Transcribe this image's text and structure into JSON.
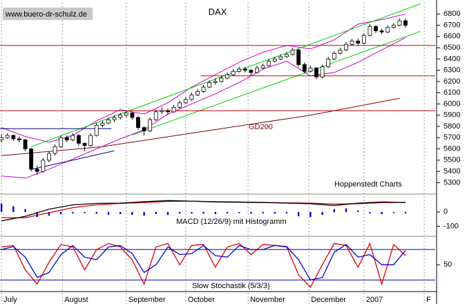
{
  "chart_data": [
    {
      "type": "candlestick",
      "title": "DAX",
      "source": "www.buero-dr-schulz.de",
      "credit": "Hoppenstedt Charts",
      "xlim": [
        -0.5,
        146
      ],
      "ylim": [
        5210,
        6900
      ],
      "yticks": [
        5300,
        5400,
        5500,
        5600,
        5700,
        5800,
        5900,
        6000,
        6100,
        6200,
        6300,
        6400,
        6500,
        6600,
        6700,
        6800
      ],
      "xticks": [
        {
          "value": 0,
          "label": "July"
        },
        {
          "value": 20.5,
          "label": "August"
        },
        {
          "value": 42,
          "label": "September"
        },
        {
          "value": 62,
          "label": "October"
        },
        {
          "value": 83,
          "label": "November"
        },
        {
          "value": 103.5,
          "label": "December"
        },
        {
          "value": 122,
          "label": "2007"
        },
        {
          "value": 142.3,
          "label": "F"
        }
      ],
      "up_color": "#ffffff",
      "down_color": "#000000",
      "x": [
        0,
        2,
        4,
        6,
        8,
        10,
        12,
        14,
        16,
        18,
        20,
        22,
        24,
        26,
        28,
        30,
        32,
        34,
        36,
        38,
        40,
        42,
        44,
        46,
        48,
        50,
        52,
        54,
        56,
        58,
        60,
        62,
        64,
        66,
        68,
        70,
        72,
        74,
        76,
        78,
        80,
        82,
        84,
        86,
        88,
        90,
        92,
        94,
        96,
        98,
        100,
        102,
        104,
        106,
        108,
        110,
        112,
        114,
        116,
        118,
        120,
        122,
        124,
        126,
        128,
        130,
        132,
        134,
        136
      ],
      "candles": [
        [
          5680,
          5730,
          5660,
          5700
        ],
        [
          5700,
          5740,
          5690,
          5720
        ],
        [
          5720,
          5730,
          5670,
          5690
        ],
        [
          5690,
          5710,
          5660,
          5680
        ],
        [
          5680,
          5690,
          5580,
          5600
        ],
        [
          5600,
          5610,
          5400,
          5420
        ],
        [
          5420,
          5450,
          5370,
          5400
        ],
        [
          5400,
          5520,
          5390,
          5500
        ],
        [
          5500,
          5580,
          5480,
          5560
        ],
        [
          5560,
          5640,
          5540,
          5620
        ],
        [
          5620,
          5720,
          5610,
          5700
        ],
        [
          5700,
          5720,
          5660,
          5680
        ],
        [
          5680,
          5740,
          5670,
          5720
        ],
        [
          5720,
          5730,
          5630,
          5650
        ],
        [
          5650,
          5660,
          5580,
          5630
        ],
        [
          5630,
          5740,
          5620,
          5720
        ],
        [
          5720,
          5830,
          5710,
          5810
        ],
        [
          5810,
          5850,
          5790,
          5830
        ],
        [
          5830,
          5880,
          5820,
          5860
        ],
        [
          5860,
          5900,
          5840,
          5880
        ],
        [
          5880,
          5920,
          5860,
          5900
        ],
        [
          5900,
          5940,
          5880,
          5920
        ],
        [
          5920,
          5930,
          5860,
          5880
        ],
        [
          5880,
          5890,
          5770,
          5790
        ],
        [
          5790,
          5800,
          5720,
          5760
        ],
        [
          5760,
          5880,
          5750,
          5860
        ],
        [
          5860,
          5950,
          5850,
          5930
        ],
        [
          5930,
          5970,
          5910,
          5940
        ],
        [
          5940,
          5960,
          5900,
          5930
        ],
        [
          5930,
          5990,
          5920,
          5970
        ],
        [
          5970,
          6030,
          5960,
          6010
        ],
        [
          6010,
          6060,
          6000,
          6040
        ],
        [
          6040,
          6100,
          6030,
          6080
        ],
        [
          6080,
          6130,
          6070,
          6110
        ],
        [
          6110,
          6170,
          6100,
          6150
        ],
        [
          6150,
          6210,
          6140,
          6190
        ],
        [
          6190,
          6230,
          6170,
          6200
        ],
        [
          6200,
          6250,
          6190,
          6230
        ],
        [
          6230,
          6280,
          6220,
          6260
        ],
        [
          6260,
          6310,
          6250,
          6290
        ],
        [
          6290,
          6330,
          6280,
          6310
        ],
        [
          6310,
          6330,
          6280,
          6300
        ],
        [
          6300,
          6310,
          6250,
          6280
        ],
        [
          6280,
          6340,
          6270,
          6320
        ],
        [
          6320,
          6360,
          6310,
          6340
        ],
        [
          6340,
          6400,
          6330,
          6380
        ],
        [
          6380,
          6420,
          6370,
          6400
        ],
        [
          6400,
          6440,
          6390,
          6420
        ],
        [
          6420,
          6460,
          6410,
          6440
        ],
        [
          6440,
          6500,
          6430,
          6480
        ],
        [
          6480,
          6490,
          6330,
          6350
        ],
        [
          6350,
          6370,
          6270,
          6290
        ],
        [
          6290,
          6340,
          6280,
          6320
        ],
        [
          6320,
          6330,
          6220,
          6240
        ],
        [
          6240,
          6350,
          6230,
          6330
        ],
        [
          6330,
          6420,
          6320,
          6400
        ],
        [
          6400,
          6470,
          6390,
          6450
        ],
        [
          6450,
          6500,
          6440,
          6480
        ],
        [
          6480,
          6550,
          6470,
          6530
        ],
        [
          6530,
          6580,
          6520,
          6560
        ],
        [
          6560,
          6580,
          6520,
          6540
        ],
        [
          6540,
          6630,
          6530,
          6610
        ],
        [
          6610,
          6710,
          6600,
          6690
        ],
        [
          6690,
          6700,
          6630,
          6650
        ],
        [
          6650,
          6670,
          6620,
          6640
        ],
        [
          6640,
          6700,
          6630,
          6680
        ],
        [
          6680,
          6720,
          6670,
          6700
        ],
        [
          6700,
          6760,
          6690,
          6740
        ],
        [
          6740,
          6760,
          6680,
          6700
        ]
      ],
      "lines": [
        {
          "name": "GD200",
          "color": "#800000",
          "x": [
            0,
            34,
            69,
            104,
            134
          ],
          "values": [
            5540,
            5620,
            5760,
            5900,
            6050
          ]
        },
        {
          "color": "#cc00cc",
          "x": [
            0,
            8,
            16,
            24,
            32,
            40,
            48,
            56,
            64,
            72,
            80,
            88,
            96,
            104,
            112,
            120,
            128,
            136
          ],
          "values": [
            5790,
            5710,
            5660,
            5720,
            5850,
            5950,
            5910,
            6010,
            6150,
            6260,
            6370,
            6460,
            6520,
            6490,
            6570,
            6710,
            6750,
            6800
          ]
        },
        {
          "color": "#cc00cc",
          "x": [
            0,
            8,
            16,
            24,
            32,
            40,
            48,
            56,
            64,
            72,
            80,
            88,
            96,
            104,
            112,
            120,
            128,
            136
          ],
          "values": [
            5360,
            5340,
            5420,
            5510,
            5600,
            5690,
            5770,
            5910,
            6000,
            6090,
            6190,
            6310,
            6380,
            6250,
            6280,
            6370,
            6480,
            6590
          ]
        },
        {
          "color": "#00cc00",
          "x": [
            10,
            141
          ],
          "values": [
            5620,
            6890
          ]
        },
        {
          "color": "#00cc00",
          "x": [
            44,
            141
          ],
          "values": [
            5724,
            6646
          ]
        },
        {
          "color": "#000080",
          "x": [
            10,
            38
          ],
          "values": [
            5417,
            5583
          ]
        },
        {
          "color": "#000080",
          "x": [
            -0.5,
            37
          ],
          "values": [
            5780,
            5780
          ]
        },
        {
          "color": "#cc0000",
          "x": [
            -0.5,
            146
          ],
          "values": [
            6520,
            6520
          ]
        },
        {
          "color": "#cc0000",
          "x": [
            67,
            146
          ],
          "values": [
            6250,
            6250
          ]
        },
        {
          "color": "#cc0000",
          "x": [
            -0.5,
            146
          ],
          "values": [
            5940,
            5940
          ]
        }
      ]
    },
    {
      "type": "line",
      "title": "MACD (12/26/9) mit Histogramm",
      "xlim": [
        -0.5,
        146
      ],
      "ylim": [
        -160,
        115
      ],
      "yticks": [
        -100,
        0
      ],
      "series": [
        {
          "kind": "bar",
          "color": "#0000cc",
          "x": [
            0,
            4,
            8,
            12,
            16,
            20,
            24,
            28,
            32,
            36,
            40,
            44,
            48,
            52,
            56,
            60,
            64,
            68,
            72,
            76,
            80,
            84,
            88,
            92,
            96,
            100,
            104,
            108,
            112,
            116,
            120,
            124,
            128,
            132,
            136
          ],
          "values": [
            60,
            40,
            20,
            -35,
            -25,
            -15,
            -10,
            -8,
            -12,
            -20,
            -15,
            -20,
            -25,
            -15,
            -20,
            -10,
            -10,
            -12,
            -15,
            -10,
            -8,
            -12,
            -10,
            -12,
            -10,
            -30,
            -35,
            -20,
            20,
            25,
            10,
            -10,
            -15,
            -8,
            -10
          ]
        },
        {
          "color": "#cc0000",
          "x": [
            0,
            8,
            16,
            24,
            32,
            40,
            48,
            56,
            64,
            72,
            80,
            88,
            96,
            104,
            112,
            120,
            128,
            136
          ],
          "values": [
            -40,
            -40,
            -5,
            30,
            50,
            60,
            66,
            74,
            76,
            72,
            70,
            67,
            64,
            62,
            55,
            58,
            65,
            67
          ]
        },
        {
          "color": "#000000",
          "x": [
            0,
            8,
            16,
            24,
            32,
            40,
            48,
            56,
            64,
            72,
            80,
            88,
            96,
            104,
            112,
            120,
            128,
            136
          ],
          "values": [
            -62,
            -30,
            20,
            50,
            60,
            62,
            72,
            80,
            76,
            70,
            68,
            66,
            62,
            58,
            45,
            62,
            70,
            66
          ]
        }
      ]
    },
    {
      "type": "line",
      "title": "Slow Stochastik (5/3/3)",
      "xlim": [
        -0.5,
        146
      ],
      "ylim": [
        0,
        102
      ],
      "yticks": [
        50
      ],
      "levels": [
        80,
        20
      ],
      "level_color": "#0000aa",
      "series": [
        {
          "color": "#dd0000",
          "x": [
            0,
            4,
            8,
            12,
            16,
            20,
            24,
            28,
            32,
            36,
            40,
            44,
            48,
            52,
            56,
            60,
            64,
            68,
            72,
            76,
            80,
            84,
            88,
            92,
            96,
            100,
            104,
            108,
            112,
            116,
            120,
            124,
            128,
            132,
            136
          ],
          "values": [
            85,
            88,
            40,
            12,
            55,
            90,
            85,
            40,
            80,
            92,
            85,
            60,
            12,
            85,
            92,
            50,
            88,
            90,
            45,
            85,
            92,
            70,
            90,
            88,
            85,
            30,
            6,
            50,
            92,
            88,
            45,
            92,
            12,
            90,
            68
          ]
        },
        {
          "color": "#0000dd",
          "x": [
            0,
            4,
            8,
            12,
            16,
            20,
            24,
            28,
            32,
            36,
            40,
            44,
            48,
            52,
            56,
            60,
            64,
            68,
            72,
            76,
            80,
            84,
            88,
            92,
            96,
            100,
            104,
            108,
            112,
            116,
            120,
            124,
            128,
            132,
            136
          ],
          "values": [
            80,
            86,
            65,
            25,
            35,
            70,
            88,
            65,
            60,
            85,
            88,
            72,
            35,
            50,
            85,
            70,
            72,
            88,
            68,
            65,
            88,
            80,
            80,
            88,
            86,
            60,
            20,
            25,
            75,
            90,
            65,
            70,
            50,
            50,
            78
          ]
        }
      ]
    }
  ]
}
